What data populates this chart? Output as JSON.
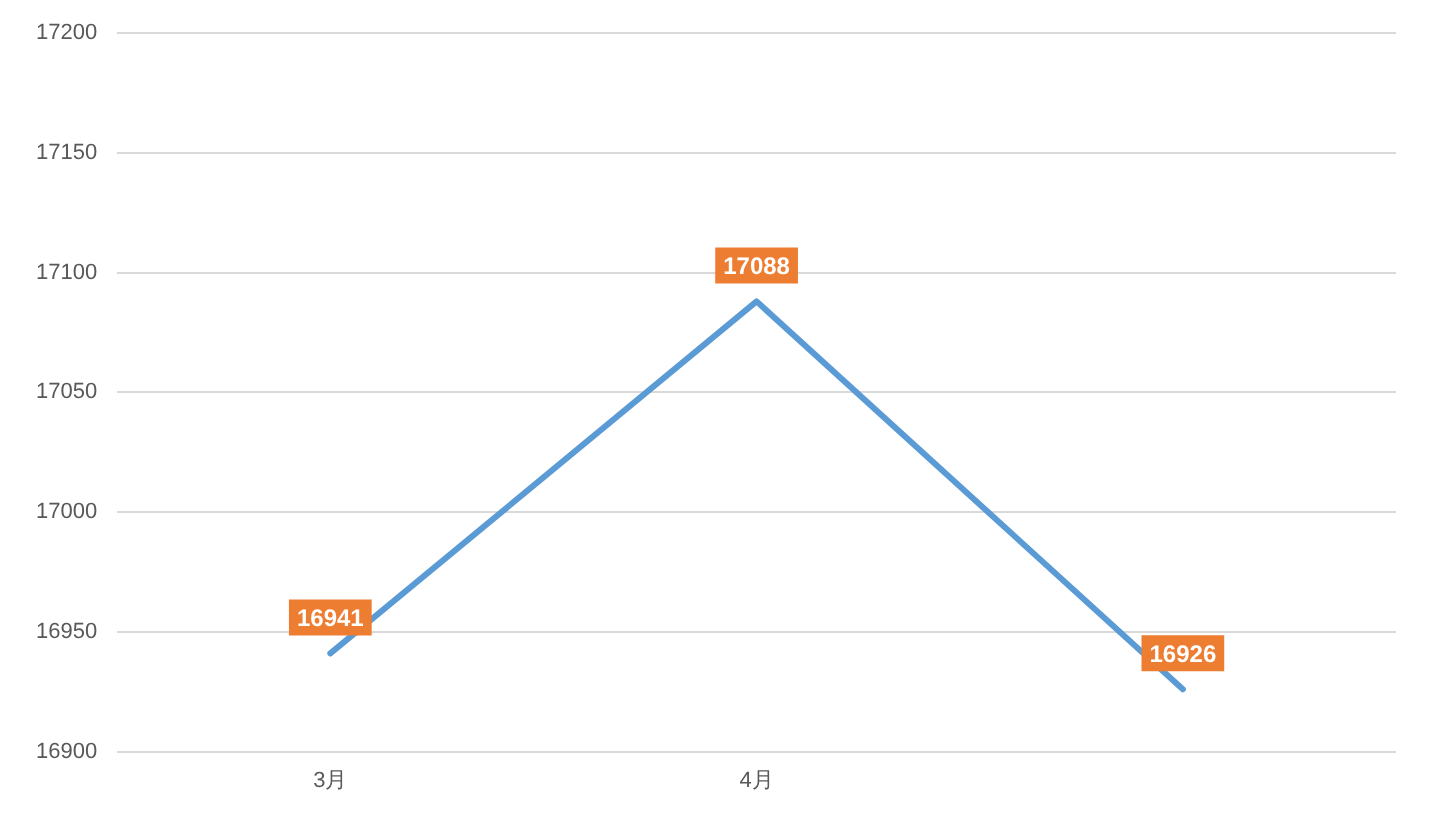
{
  "chart_data": {
    "type": "line",
    "categories": [
      "3月",
      "4月",
      null
    ],
    "series": [
      {
        "color": "#5b9bd5",
        "values": [
          16941,
          17088,
          16926
        ]
      }
    ],
    "ylim": [
      16900,
      17200
    ],
    "yticks": [
      16900,
      16950,
      17000,
      17050,
      17100,
      17150,
      17200
    ],
    "grid": "y",
    "legend": false,
    "marker": "none",
    "line_style": "solid",
    "data_labels": true
  }
}
